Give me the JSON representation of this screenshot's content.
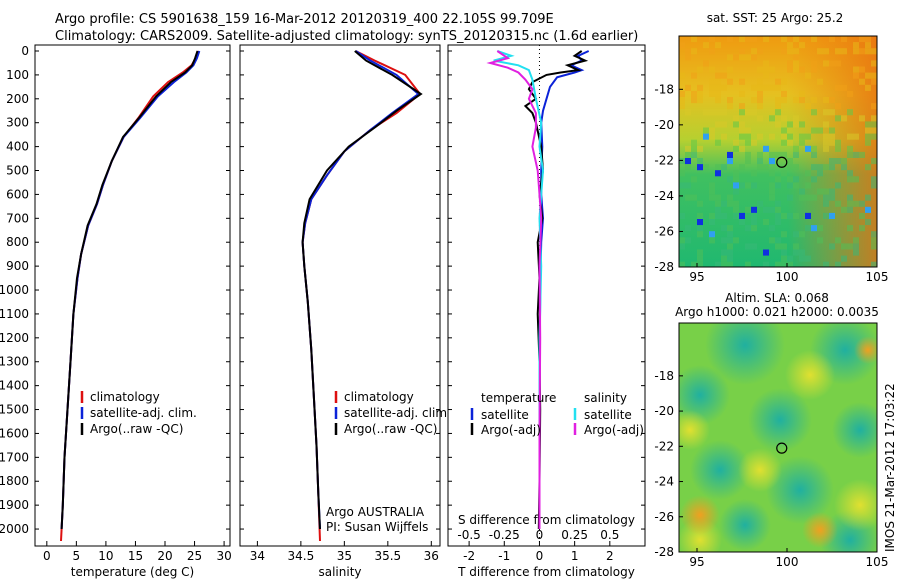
{
  "header": {
    "line1": "Argo profile: CS 5901638_159 16-Mar-2012 20120319_400 22.105S 99.709E",
    "line2": "Climatology: CARS2009. Satellite-adjusted climatology: synTS_20120315.nc (1.6d earlier)"
  },
  "credit": "IMOS 21-Mar-2012 17:03:22",
  "colors": {
    "climatology": "#dd1010",
    "satellite": "#0b22d8",
    "argo": "#000000",
    "sat_s": "#22e0f0",
    "argo_s": "#e020e0"
  },
  "chart_data": [
    {
      "type": "line",
      "xlabel": "temperature (deg C)",
      "ylim": [
        2050,
        0
      ],
      "xlim": [
        -2,
        31
      ],
      "yticks": [
        "0",
        "100",
        "200",
        "300",
        "400",
        "500",
        "600",
        "700",
        "800",
        "900",
        "1000",
        "1100",
        "1200",
        "1300",
        "1400",
        "1500",
        "1600",
        "1700",
        "1800",
        "1900",
        "2000"
      ],
      "xticks": [
        "0",
        "5",
        "10",
        "15",
        "20",
        "25",
        "30"
      ],
      "legend": [
        "climatology",
        "satellite-adj. clim.",
        "Argo(..raw -QC)"
      ],
      "series": [
        {
          "name": "climatology",
          "points": [
            [
              25.6,
              0
            ],
            [
              25.2,
              30
            ],
            [
              24.5,
              60
            ],
            [
              23,
              90
            ],
            [
              20.5,
              130
            ],
            [
              18,
              190
            ],
            [
              15.5,
              280
            ],
            [
              13,
              360
            ],
            [
              11,
              460
            ],
            [
              9.5,
              560
            ],
            [
              8.5,
              640
            ],
            [
              7,
              730
            ],
            [
              5.8,
              850
            ],
            [
              5.2,
              950
            ],
            [
              4.5,
              1100
            ],
            [
              4,
              1300
            ],
            [
              3.5,
              1500
            ],
            [
              3,
              1700
            ],
            [
              2.7,
              1900
            ],
            [
              2.4,
              2050
            ]
          ]
        },
        {
          "name": "satellite-adj. clim.",
          "points": [
            [
              25.8,
              0
            ],
            [
              25.4,
              30
            ],
            [
              24.8,
              60
            ],
            [
              23.6,
              90
            ],
            [
              21.5,
              130
            ],
            [
              18.8,
              190
            ],
            [
              15.8,
              280
            ],
            [
              13,
              360
            ],
            [
              11,
              460
            ],
            [
              9.5,
              560
            ],
            [
              8.5,
              640
            ],
            [
              7,
              730
            ],
            [
              5.8,
              850
            ],
            [
              5.2,
              950
            ],
            [
              4.5,
              1100
            ],
            [
              4,
              1300
            ],
            [
              3.5,
              1500
            ],
            [
              3,
              1700
            ],
            [
              2.7,
              1900
            ],
            [
              2.5,
              2000
            ]
          ]
        },
        {
          "name": "Argo(..raw -QC)",
          "points": [
            [
              25.5,
              0
            ],
            [
              25.1,
              30
            ],
            [
              24.6,
              60
            ],
            [
              23.4,
              90
            ],
            [
              21,
              130
            ],
            [
              18.5,
              190
            ],
            [
              15.6,
              280
            ],
            [
              12.9,
              360
            ],
            [
              11,
              460
            ],
            [
              9.4,
              560
            ],
            [
              8.4,
              640
            ],
            [
              6.9,
              730
            ],
            [
              5.8,
              850
            ],
            [
              5.1,
              950
            ],
            [
              4.5,
              1100
            ],
            [
              4,
              1300
            ],
            [
              3.5,
              1500
            ],
            [
              3,
              1700
            ],
            [
              2.7,
              1900
            ],
            [
              2.5,
              2000
            ]
          ]
        }
      ]
    },
    {
      "type": "line",
      "xlabel": "salinity",
      "ylim": [
        2050,
        0
      ],
      "xlim": [
        33.8,
        36.1
      ],
      "xticks": [
        "34",
        "34.5",
        "35",
        "35.5",
        "36"
      ],
      "legend": [
        "climatology",
        "satellite-adj. clim.",
        "Argo(..raw -QC)"
      ],
      "annotation": [
        "Argo AUSTRALIA",
        "PI: Susan Wijffels"
      ],
      "series": [
        {
          "name": "climatology",
          "points": [
            [
              35.13,
              0
            ],
            [
              35.35,
              40
            ],
            [
              35.7,
              100
            ],
            [
              35.87,
              180
            ],
            [
              35.6,
              260
            ],
            [
              35.3,
              330
            ],
            [
              35,
              420
            ],
            [
              34.8,
              520
            ],
            [
              34.62,
              620
            ],
            [
              34.55,
              720
            ],
            [
              34.52,
              800
            ],
            [
              34.54,
              900
            ],
            [
              34.58,
              1050
            ],
            [
              34.62,
              1250
            ],
            [
              34.65,
              1450
            ],
            [
              34.68,
              1650
            ],
            [
              34.7,
              1850
            ],
            [
              34.72,
              2050
            ]
          ]
        },
        {
          "name": "satellite-adj. clim.",
          "points": [
            [
              35.13,
              0
            ],
            [
              35.3,
              40
            ],
            [
              35.6,
              100
            ],
            [
              35.85,
              180
            ],
            [
              35.55,
              260
            ],
            [
              35.3,
              330
            ],
            [
              35,
              420
            ],
            [
              34.8,
              520
            ],
            [
              34.62,
              620
            ],
            [
              34.55,
              720
            ],
            [
              34.52,
              800
            ],
            [
              34.54,
              900
            ],
            [
              34.58,
              1050
            ],
            [
              34.62,
              1250
            ],
            [
              34.65,
              1450
            ],
            [
              34.68,
              1650
            ],
            [
              34.7,
              1850
            ],
            [
              34.72,
              2000
            ]
          ]
        },
        {
          "name": "Argo(..raw -QC)",
          "points": [
            [
              35.12,
              0
            ],
            [
              35.25,
              40
            ],
            [
              35.55,
              100
            ],
            [
              35.88,
              180
            ],
            [
              35.6,
              250
            ],
            [
              35.35,
              320
            ],
            [
              35.05,
              400
            ],
            [
              34.8,
              500
            ],
            [
              34.6,
              620
            ],
            [
              34.54,
              720
            ],
            [
              34.52,
              800
            ],
            [
              34.54,
              900
            ],
            [
              34.58,
              1050
            ],
            [
              34.62,
              1250
            ],
            [
              34.65,
              1450
            ],
            [
              34.68,
              1650
            ],
            [
              34.7,
              1850
            ],
            [
              34.72,
              2000
            ]
          ]
        }
      ]
    },
    {
      "type": "line",
      "xlabel": "T difference from climatology",
      "xlabel_top": "S difference from climatology",
      "ylim": [
        2050,
        0
      ],
      "xlim": [
        -2.6,
        3.0
      ],
      "xticks": [
        "-2",
        "-1",
        "0",
        "1",
        "2"
      ],
      "xticks_top": [
        "-0.5",
        "-0.25",
        "0",
        "0.25",
        "0.5"
      ],
      "legend_titles": [
        "temperature",
        "salinity"
      ],
      "legend": [
        "satellite",
        "Argo(-adj)",
        "satellite",
        "Argo(-adj)"
      ],
      "series": [
        {
          "name": "temperature satellite",
          "points": [
            [
              1.4,
              0
            ],
            [
              1.1,
              20
            ],
            [
              1.2,
              40
            ],
            [
              0.9,
              60
            ],
            [
              1.2,
              80
            ],
            [
              1.0,
              90
            ],
            [
              0.5,
              110
            ],
            [
              0.3,
              150
            ],
            [
              0.2,
              200
            ],
            [
              0.1,
              250
            ],
            [
              0.05,
              300
            ],
            [
              0.08,
              400
            ],
            [
              0.05,
              500
            ],
            [
              0.05,
              600
            ],
            [
              0.1,
              700
            ],
            [
              0.05,
              800
            ],
            [
              0.02,
              1000
            ],
            [
              0.0,
              1500
            ],
            [
              0.0,
              2000
            ]
          ]
        },
        {
          "name": "temperature Argo(-adj)",
          "points": [
            [
              1.2,
              0
            ],
            [
              1.0,
              20
            ],
            [
              1.3,
              40
            ],
            [
              0.8,
              60
            ],
            [
              1.1,
              80
            ],
            [
              0.6,
              90
            ],
            [
              0.2,
              100
            ],
            [
              -0.2,
              130
            ],
            [
              -0.3,
              160
            ],
            [
              -0.1,
              200
            ],
            [
              -0.4,
              230
            ],
            [
              -0.2,
              260
            ],
            [
              -0.1,
              300
            ],
            [
              0.05,
              400
            ],
            [
              0.1,
              500
            ],
            [
              0.0,
              600
            ],
            [
              0.08,
              700
            ],
            [
              -0.05,
              800
            ],
            [
              0.0,
              950
            ],
            [
              -0.05,
              1100
            ],
            [
              0.0,
              1300
            ],
            [
              0.02,
              1500
            ],
            [
              0.0,
              1800
            ],
            [
              -0.02,
              2000
            ]
          ]
        },
        {
          "name": "salinity satellite",
          "points": [
            [
              -1.2,
              0
            ],
            [
              -0.8,
              20
            ],
            [
              -1.3,
              40
            ],
            [
              -0.6,
              60
            ],
            [
              -0.3,
              80
            ],
            [
              -0.2,
              120
            ],
            [
              -0.1,
              200
            ],
            [
              0.05,
              300
            ],
            [
              0.0,
              400
            ],
            [
              0.1,
              500
            ],
            [
              0.05,
              600
            ],
            [
              0.0,
              700
            ],
            [
              0.05,
              900
            ],
            [
              0.0,
              1200
            ],
            [
              0.0,
              2000
            ]
          ]
        },
        {
          "name": "salinity Argo(-adj)",
          "points": [
            [
              -1.2,
              0
            ],
            [
              -0.9,
              30
            ],
            [
              -1.4,
              50
            ],
            [
              -0.9,
              70
            ],
            [
              -0.6,
              90
            ],
            [
              -0.4,
              120
            ],
            [
              -0.2,
              160
            ],
            [
              -0.3,
              200
            ],
            [
              -0.1,
              260
            ],
            [
              -0.1,
              320
            ],
            [
              -0.2,
              400
            ],
            [
              -0.05,
              500
            ],
            [
              0.0,
              600
            ],
            [
              0.05,
              700
            ],
            [
              0.0,
              900
            ],
            [
              0.02,
              1200
            ],
            [
              0.0,
              1600
            ],
            [
              0.0,
              2000
            ]
          ]
        }
      ]
    },
    {
      "type": "heatmap",
      "title": "sat. SST: 25 Argo: 25.2",
      "xlim": [
        94,
        105
      ],
      "ylim": [
        -28,
        -15
      ],
      "xticks": [
        "95",
        "100",
        "105"
      ],
      "yticks": [
        "-18",
        "-20",
        "-22",
        "-24",
        "-26",
        "-28"
      ],
      "marker": [
        99.709,
        -22.105
      ]
    },
    {
      "type": "heatmap",
      "title": "Altim. SLA: 0.068",
      "subtitle": "Argo h1000: 0.021 h2000: 0.0035",
      "xlim": [
        94,
        105
      ],
      "ylim": [
        -28,
        -15
      ],
      "xticks": [
        "95",
        "100",
        "105"
      ],
      "yticks": [
        "-18",
        "-20",
        "-22",
        "-24",
        "-26",
        "-28"
      ],
      "marker": [
        99.709,
        -22.105
      ]
    }
  ]
}
